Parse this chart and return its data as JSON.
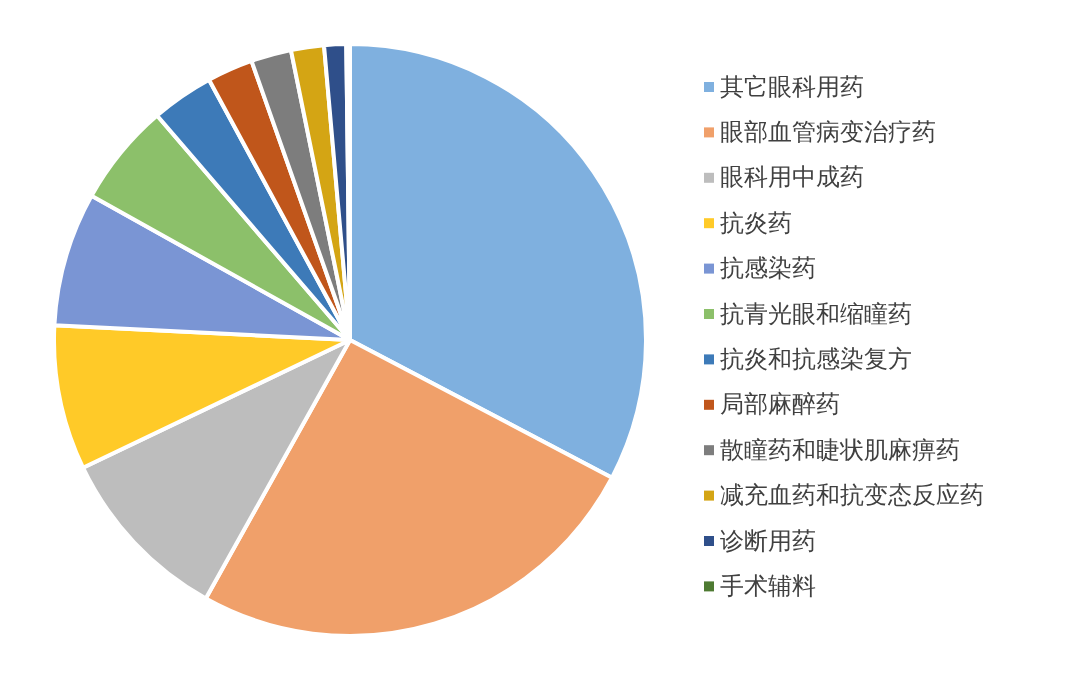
{
  "chart_data": {
    "type": "pie",
    "categories": [
      "其它眼科用药",
      "眼部血管病变治疗药",
      "眼科用中成药",
      "抗炎药",
      "抗感染药",
      "抗青光眼和缩瞳药",
      "抗炎和抗感染复方",
      "局部麻醉药",
      "散瞳药和睫状肌麻痹药",
      "减充血药和抗变态反应药",
      "诊断用药",
      "手术辅料"
    ],
    "values": [
      32.7,
      25.4,
      9.8,
      7.9,
      7.3,
      5.6,
      3.4,
      2.5,
      2.2,
      1.8,
      1.2,
      0.2
    ],
    "colors": [
      "#7fb0df",
      "#f0a06a",
      "#bdbdbd",
      "#ffca28",
      "#7a95d4",
      "#8cc06a",
      "#3d7ab8",
      "#c0561b",
      "#7d7d7d",
      "#d4a514",
      "#2f4f8a",
      "#4e7a32"
    ],
    "legend": "right"
  }
}
